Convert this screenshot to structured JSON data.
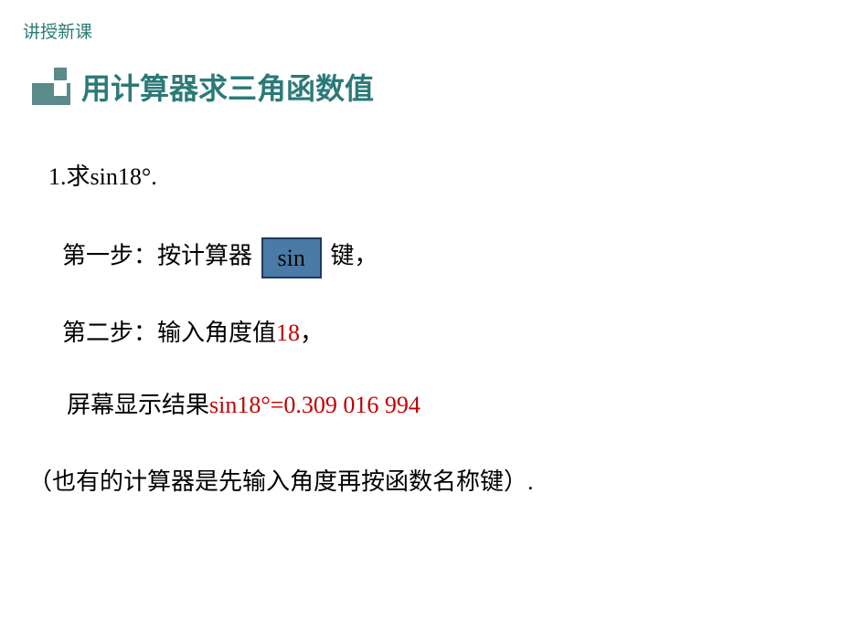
{
  "colors": {
    "breadcrumb": "#2b7a78",
    "section_icon": "#5a8a8a",
    "section_title": "#2b7a78",
    "body_text": "#000000",
    "highlight": "#c00000",
    "button_bg": "#4a7ba6",
    "button_border": "#1f3a5f",
    "button_text": "#000000"
  },
  "breadcrumb": "讲授新课",
  "section": {
    "title": "用计算器求三角函数值"
  },
  "problem": {
    "prefix": "1.求",
    "expr": "sin18°",
    "suffix": "."
  },
  "step1": {
    "prefix": "第一步：按计算器",
    "key": "sin",
    "suffix": "键，"
  },
  "step2": {
    "prefix": "第二步：输入角度值",
    "value": "18",
    "suffix": "，"
  },
  "result": {
    "prefix": "屏幕显示结果",
    "expr": "sin18°=0.309 016 994"
  },
  "note": "（也有的计算器是先输入角度再按函数名称键）."
}
